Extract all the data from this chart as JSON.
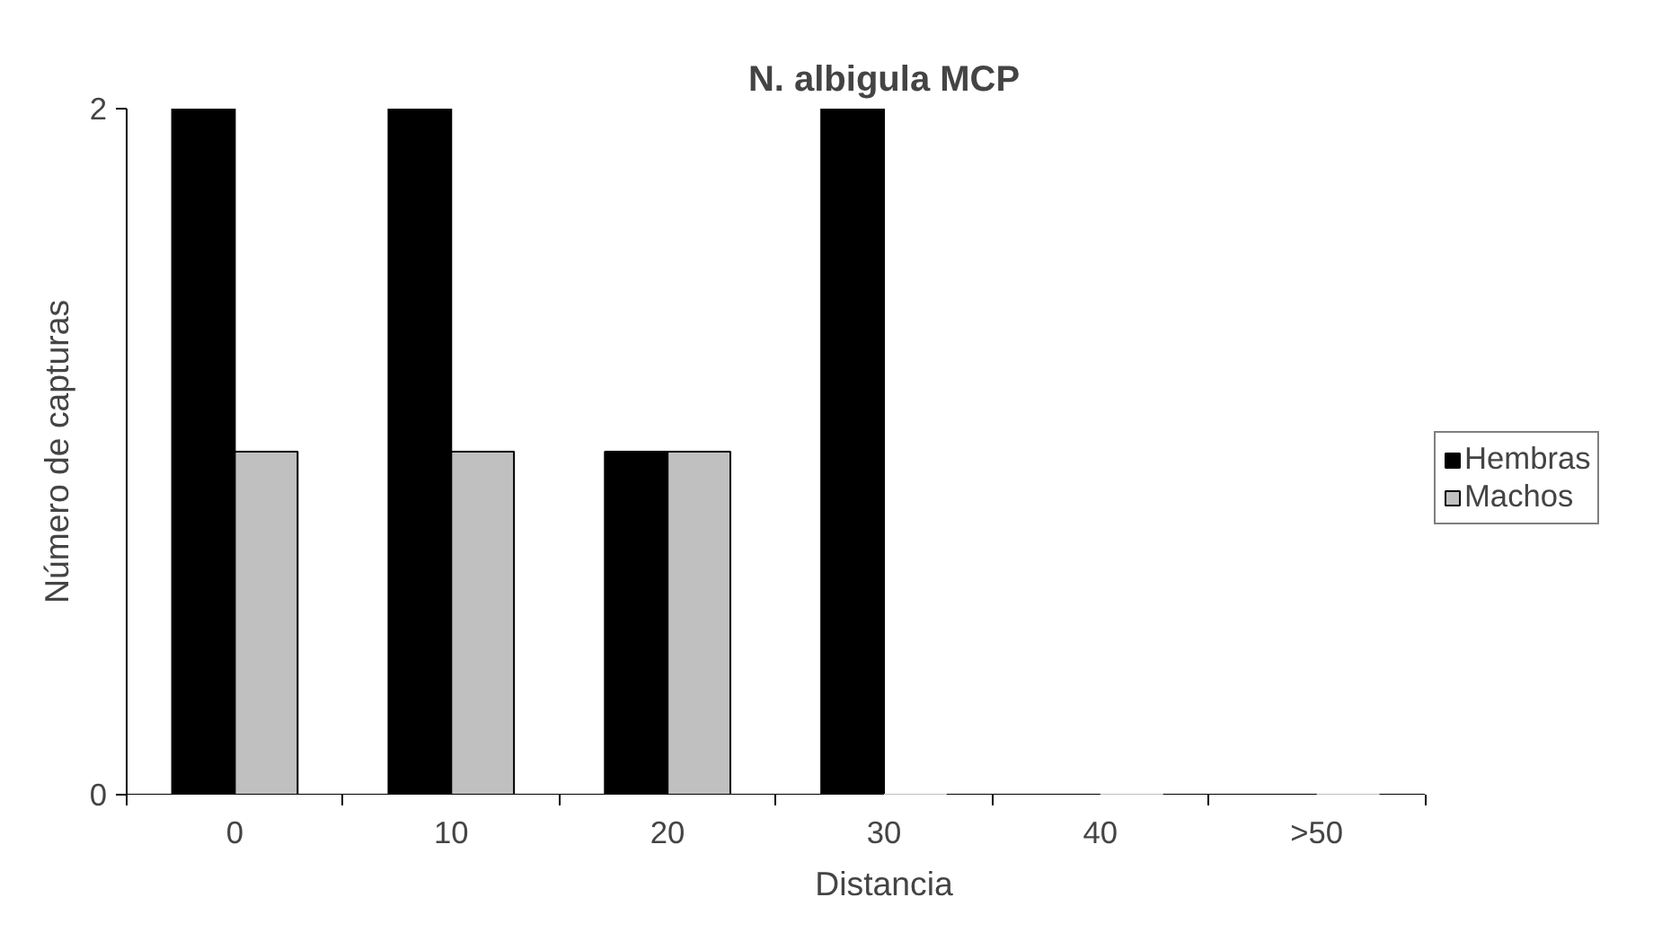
{
  "chart_data": {
    "type": "bar",
    "title": "N. albigula MCP",
    "xlabel": "Distancia",
    "ylabel": "Número de capturas",
    "categories": [
      "0",
      "10",
      "20",
      "30",
      "40",
      ">50"
    ],
    "series": [
      {
        "name": "Hembras",
        "color": "#000000",
        "values": [
          2,
          2,
          1,
          2,
          0,
          0
        ]
      },
      {
        "name": "Machos",
        "color": "#c0c0c0",
        "values": [
          1,
          1,
          1,
          0,
          0,
          0
        ]
      }
    ],
    "ylim": [
      0,
      2
    ],
    "yticks": [
      0,
      2
    ],
    "grid": false,
    "legend": "right"
  }
}
